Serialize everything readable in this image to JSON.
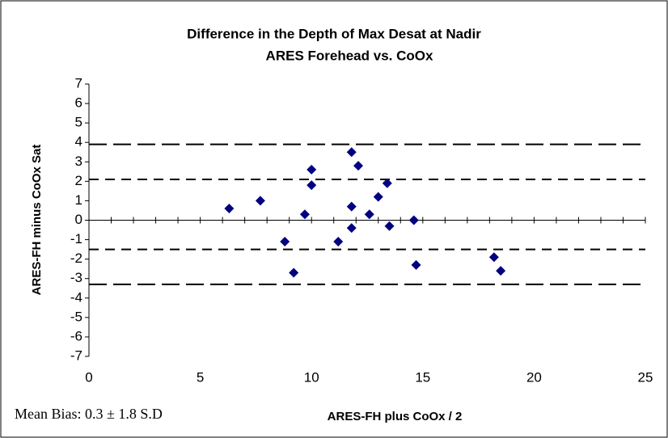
{
  "chart_data": {
    "type": "scatter",
    "title": [
      "Difference in the Depth of Max Desat at Nadir",
      "ARES Forehead vs. CoOx"
    ],
    "xlabel": "ARES-FH plus CoOx / 2",
    "ylabel": "ARES-FH minus CoOx Sat",
    "annotation": "Mean Bias: 0.3 ± 1.8 S.D",
    "xlim": [
      0,
      25
    ],
    "xticks": [
      0,
      5,
      10,
      15,
      20,
      25
    ],
    "ylim": [
      -7,
      7
    ],
    "yticks": [
      -7,
      -6,
      -5,
      -4,
      -3,
      -2,
      -1,
      0,
      1,
      2,
      3,
      4,
      5,
      6,
      7
    ],
    "series": [
      {
        "color": "#000080",
        "x": [
          6.3,
          7.7,
          8.8,
          9.2,
          9.7,
          10.0,
          10.0,
          11.2,
          11.8,
          11.8,
          11.8,
          12.1,
          12.6,
          13.0,
          13.4,
          13.5,
          14.6,
          14.7,
          18.2,
          18.5
        ],
        "values": [
          0.6,
          1.0,
          -1.1,
          -2.7,
          0.3,
          1.8,
          2.6,
          -1.1,
          3.5,
          0.7,
          -0.4,
          2.8,
          0.3,
          1.2,
          1.9,
          -0.3,
          0.0,
          -2.3,
          -1.9,
          -2.6
        ]
      }
    ],
    "reference_lines": [
      {
        "value": 3.9,
        "dash": "long"
      },
      {
        "value": 2.1,
        "dash": "short"
      },
      {
        "value": -1.5,
        "dash": "short"
      },
      {
        "value": -3.3,
        "dash": "long"
      }
    ]
  }
}
